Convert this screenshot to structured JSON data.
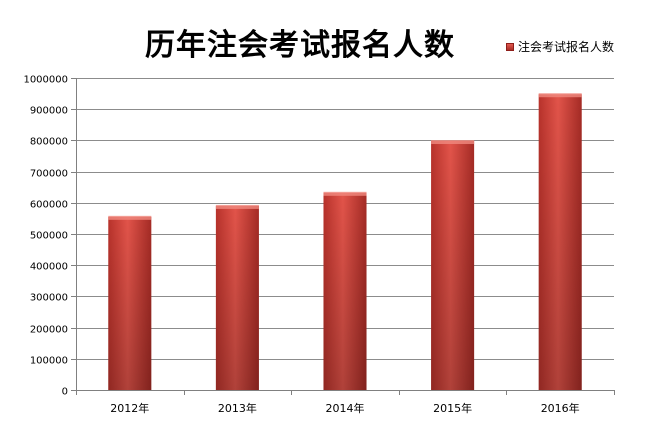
{
  "chart_data": {
    "type": "bar",
    "title": "历年注会考试报名人数",
    "categories": [
      "2012年",
      "2013年",
      "2014年",
      "2015年",
      "2016年"
    ],
    "series": [
      {
        "name": "注会考试报名人数",
        "values": [
          555000,
          590000,
          632000,
          798000,
          948000
        ]
      }
    ],
    "ylim": [
      0,
      1000000
    ],
    "yticks": [
      "0",
      "100000",
      "200000",
      "300000",
      "400000",
      "500000",
      "600000",
      "700000",
      "800000",
      "900000",
      "1000000"
    ],
    "xlabel": "",
    "ylabel": "",
    "grid": true,
    "legend": "top-right",
    "bar_color": "#d9443a"
  }
}
